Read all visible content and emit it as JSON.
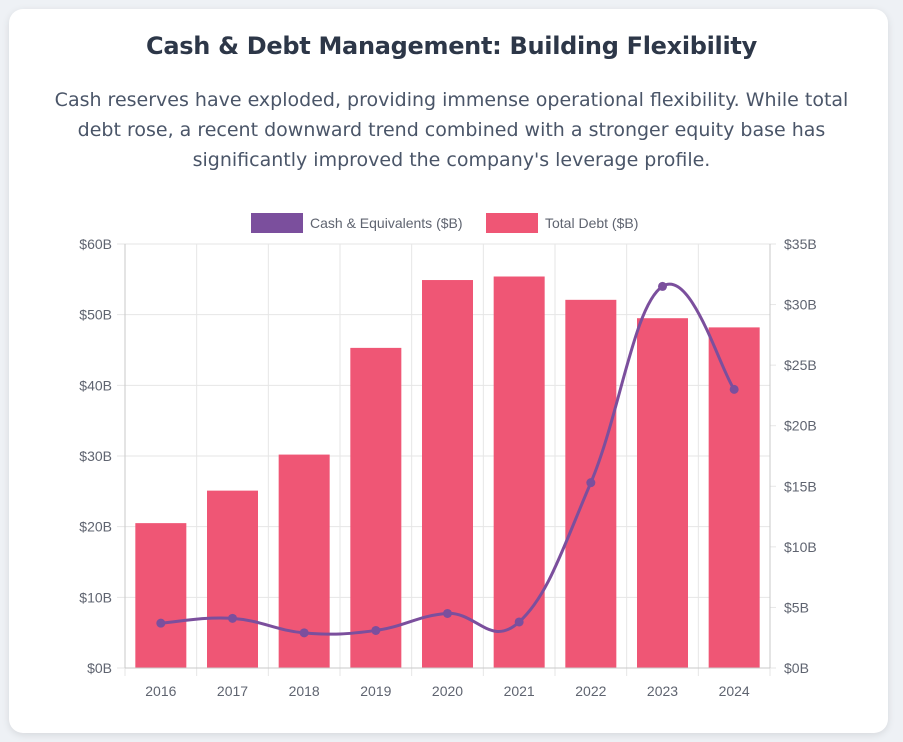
{
  "header": {
    "title": "Cash & Debt Management: Building Flexibility",
    "subtitle": "Cash reserves have exploded, providing immense operational flexibility. While total debt rose, a recent downward trend combined with a stronger equity base has significantly improved the company's leverage profile."
  },
  "colors": {
    "cash": "#7b4f9d",
    "debt": "#ef5675",
    "grid": "#e6e6e6",
    "axis": "#c9c9c9"
  },
  "chart_data": {
    "type": "bar",
    "title": "Cash & Debt Management: Building Flexibility",
    "categories": [
      "2016",
      "2017",
      "2018",
      "2019",
      "2020",
      "2021",
      "2022",
      "2023",
      "2024"
    ],
    "series": [
      {
        "name": "Cash & Equivalents ($B)",
        "type": "line",
        "axis": "right",
        "values": [
          3.7,
          4.1,
          2.9,
          3.1,
          4.5,
          3.8,
          15.3,
          31.5,
          23.0
        ]
      },
      {
        "name": "Total Debt ($B)",
        "type": "bar",
        "axis": "left",
        "values": [
          20.5,
          25.1,
          30.2,
          45.3,
          54.9,
          55.4,
          52.1,
          49.5,
          48.2
        ]
      }
    ],
    "y_left": {
      "range": [
        0,
        60
      ],
      "ticks": [
        "$0B",
        "$10B",
        "$20B",
        "$30B",
        "$40B",
        "$50B",
        "$60B"
      ]
    },
    "y_right": {
      "range": [
        0,
        35
      ],
      "ticks": [
        "$0B",
        "$5B",
        "$10B",
        "$15B",
        "$20B",
        "$25B",
        "$30B",
        "$35B"
      ]
    },
    "grid": true,
    "legend_position": "top"
  }
}
